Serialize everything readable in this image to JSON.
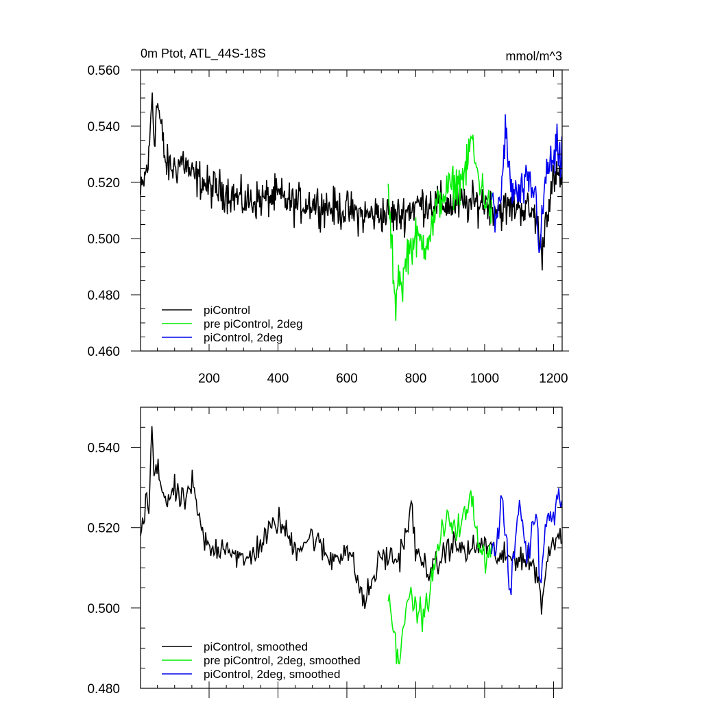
{
  "chart_data": [
    {
      "type": "line",
      "title": "0m Ptot, ATL_44S-18S",
      "units": "mmol/m^3",
      "xlim": [
        1,
        1225
      ],
      "ylim": [
        0.46,
        0.56
      ],
      "x_ticks": [
        200,
        400,
        600,
        800,
        1000,
        1200
      ],
      "x_tick_labels": [
        "200",
        "400",
        "600",
        "800",
        "1000",
        "1200"
      ],
      "y_ticks": [
        0.46,
        0.48,
        0.5,
        0.52,
        0.54,
        0.56
      ],
      "y_tick_labels": [
        "0.460",
        "0.480",
        "0.500",
        "0.520",
        "0.540",
        "0.560"
      ],
      "grid": false,
      "legend_position": "bottom-left",
      "series": [
        {
          "name": "piControl",
          "color": "#000000",
          "x": [
            1,
            25,
            35,
            40,
            50,
            75,
            100,
            125,
            150,
            175,
            200,
            250,
            300,
            350,
            400,
            450,
            500,
            550,
            600,
            650,
            700,
            750,
            800,
            850,
            900,
            950,
            1000,
            1050,
            1100,
            1150,
            1165,
            1180,
            1200,
            1225
          ],
          "y": [
            0.515,
            0.528,
            0.553,
            0.535,
            0.549,
            0.526,
            0.525,
            0.528,
            0.522,
            0.521,
            0.518,
            0.517,
            0.513,
            0.514,
            0.515,
            0.512,
            0.513,
            0.511,
            0.51,
            0.508,
            0.509,
            0.508,
            0.512,
            0.513,
            0.512,
            0.512,
            0.513,
            0.51,
            0.512,
            0.508,
            0.494,
            0.51,
            0.52,
            0.523
          ]
        },
        {
          "name": "pre piControl, 2deg",
          "color": "#00ee00",
          "x": [
            720,
            730,
            740,
            750,
            760,
            775,
            800,
            825,
            850,
            860,
            875,
            900,
            925,
            950,
            960,
            975,
            1000,
            1020
          ],
          "y": [
            0.515,
            0.498,
            0.474,
            0.49,
            0.482,
            0.495,
            0.5,
            0.498,
            0.505,
            0.51,
            0.515,
            0.518,
            0.52,
            0.525,
            0.537,
            0.525,
            0.515,
            0.51
          ]
        },
        {
          "name": "piControl, 2deg",
          "color": "#0000ee",
          "x": [
            1020,
            1030,
            1050,
            1060,
            1075,
            1100,
            1125,
            1150,
            1160,
            1175,
            1190,
            1200,
            1210,
            1220,
            1225
          ],
          "y": [
            0.515,
            0.505,
            0.518,
            0.539,
            0.518,
            0.515,
            0.52,
            0.515,
            0.494,
            0.52,
            0.528,
            0.525,
            0.533,
            0.525,
            0.537
          ]
        }
      ]
    },
    {
      "type": "line",
      "xlim": [
        1,
        1225
      ],
      "ylim": [
        0.48,
        0.55
      ],
      "x_ticks": [
        200,
        400,
        600,
        800,
        1000,
        1200
      ],
      "y_ticks": [
        0.5,
        0.52,
        0.54
      ],
      "y_tick_labels": [
        "0.500",
        "0.520",
        "0.540"
      ],
      "y_bottom_label": "0.480",
      "grid": false,
      "legend_position": "bottom-left",
      "series": [
        {
          "name": "piControl, smoothed",
          "color": "#000000",
          "x": [
            1,
            10,
            20,
            25,
            30,
            35,
            40,
            50,
            75,
            100,
            125,
            150,
            175,
            200,
            250,
            300,
            350,
            400,
            450,
            500,
            550,
            600,
            625,
            650,
            700,
            750,
            790,
            800,
            850,
            900,
            950,
            1000,
            1050,
            1100,
            1150,
            1165,
            1180,
            1200,
            1225
          ],
          "y": [
            0.519,
            0.521,
            0.529,
            0.522,
            0.535,
            0.546,
            0.533,
            0.534,
            0.527,
            0.529,
            0.526,
            0.531,
            0.52,
            0.514,
            0.516,
            0.511,
            0.516,
            0.522,
            0.515,
            0.518,
            0.512,
            0.515,
            0.509,
            0.501,
            0.513,
            0.512,
            0.525,
            0.513,
            0.509,
            0.516,
            0.514,
            0.516,
            0.512,
            0.513,
            0.51,
            0.501,
            0.511,
            0.517,
            0.519
          ]
        },
        {
          "name": "pre piControl, 2deg, smoothed",
          "color": "#00ee00",
          "x": [
            720,
            730,
            740,
            750,
            760,
            775,
            800,
            825,
            850,
            875,
            900,
            925,
            950,
            960,
            975,
            1000,
            1020
          ],
          "y": [
            0.505,
            0.498,
            0.492,
            0.485,
            0.495,
            0.503,
            0.5,
            0.498,
            0.508,
            0.519,
            0.522,
            0.52,
            0.524,
            0.528,
            0.52,
            0.512,
            0.516
          ]
        },
        {
          "name": "piControl, 2deg, smoothed",
          "color": "#0000ee",
          "x": [
            1020,
            1030,
            1050,
            1075,
            1100,
            1125,
            1150,
            1160,
            1175,
            1190,
            1200,
            1210,
            1225
          ],
          "y": [
            0.516,
            0.512,
            0.528,
            0.503,
            0.527,
            0.512,
            0.526,
            0.506,
            0.519,
            0.526,
            0.522,
            0.529,
            0.525
          ]
        }
      ]
    }
  ]
}
